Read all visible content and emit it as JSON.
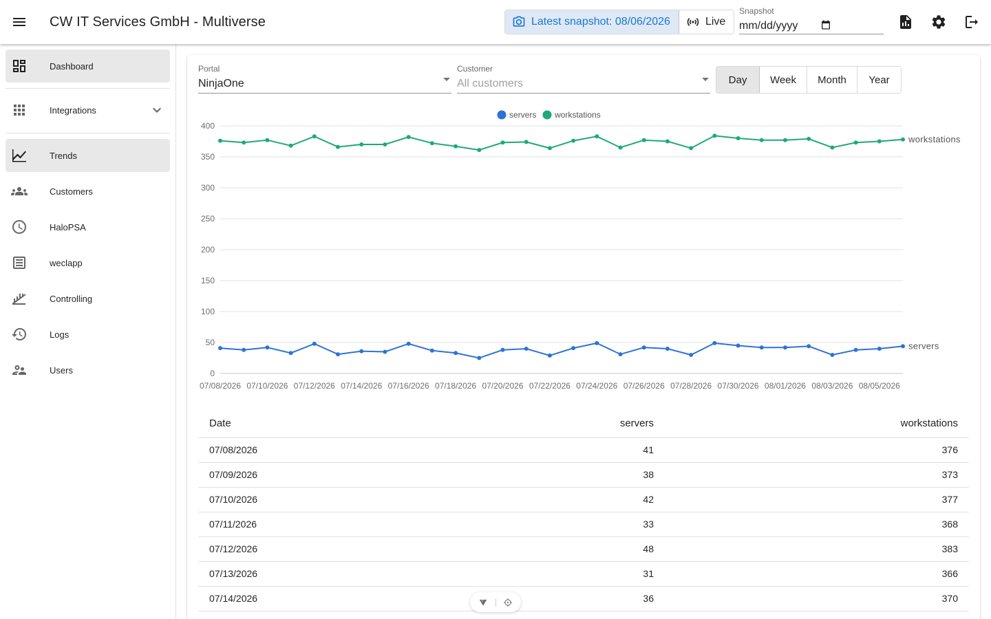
{
  "header": {
    "title": "CW IT Services GmbH - Multiverse",
    "snapshot_button": "Latest snapshot: 08/06/2026",
    "live_button": "Live",
    "snapshot_field_label": "Snapshot",
    "snapshot_field_value": "mm/dd/yyyy"
  },
  "sidebar": {
    "items": [
      {
        "label": "Dashboard",
        "icon": "dashboard-icon",
        "active": true
      },
      {
        "label": "Integrations",
        "icon": "apps-grid-icon",
        "expandable": true
      },
      {
        "label": "Trends",
        "icon": "trend-line-icon",
        "active": true
      },
      {
        "label": "Customers",
        "icon": "groups-icon"
      },
      {
        "label": "HaloPSA",
        "icon": "clock-icon"
      },
      {
        "label": "weclapp",
        "icon": "list-icon"
      },
      {
        "label": "Controlling",
        "icon": "stacked-chart-icon"
      },
      {
        "label": "Logs",
        "icon": "history-icon"
      },
      {
        "label": "Users",
        "icon": "people-icon"
      }
    ]
  },
  "filters": {
    "portal_label": "Portal",
    "portal_value": "NinjaOne",
    "customer_label": "Customer",
    "customer_placeholder": "All customers",
    "ranges": [
      "Day",
      "Week",
      "Month",
      "Year"
    ],
    "selected_range": "Day"
  },
  "chart_data": {
    "type": "line",
    "x": [
      "07/08/2026",
      "07/09/2026",
      "07/10/2026",
      "07/11/2026",
      "07/12/2026",
      "07/13/2026",
      "07/14/2026",
      "07/15/2026",
      "07/16/2026",
      "07/17/2026",
      "07/18/2026",
      "07/19/2026",
      "07/20/2026",
      "07/21/2026",
      "07/22/2026",
      "07/23/2026",
      "07/24/2026",
      "07/25/2026",
      "07/26/2026",
      "07/27/2026",
      "07/28/2026",
      "07/29/2026",
      "07/30/2026",
      "07/31/2026",
      "08/01/2026",
      "08/02/2026",
      "08/03/2026",
      "08/04/2026",
      "08/05/2026",
      "08/06/2026"
    ],
    "x_tick_labels": [
      "07/08/2026",
      "07/10/2026",
      "07/12/2026",
      "07/14/2026",
      "07/16/2026",
      "07/18/2026",
      "07/20/2026",
      "07/22/2026",
      "07/24/2026",
      "07/26/2026",
      "07/28/2026",
      "07/30/2026",
      "08/01/2026",
      "08/03/2026",
      "08/05/2026"
    ],
    "ylim": [
      0,
      400
    ],
    "y_ticks": [
      0,
      50,
      100,
      150,
      200,
      250,
      300,
      350,
      400
    ],
    "grid": true,
    "legend_position": "top-center",
    "series": [
      {
        "name": "servers",
        "color": "#2d73d6",
        "values": [
          41,
          38,
          42,
          33,
          48,
          31,
          36,
          35,
          48,
          37,
          33,
          25,
          38,
          40,
          29,
          41,
          49,
          31,
          42,
          40,
          30,
          49,
          45,
          42,
          42,
          44,
          30,
          38,
          40,
          44
        ]
      },
      {
        "name": "workstations",
        "color": "#1fa97a",
        "values": [
          376,
          373,
          377,
          368,
          383,
          366,
          370,
          370,
          382,
          372,
          367,
          361,
          373,
          374,
          364,
          376,
          383,
          365,
          377,
          375,
          364,
          384,
          380,
          377,
          377,
          379,
          365,
          373,
          375,
          378
        ]
      }
    ]
  },
  "table": {
    "headers": [
      "Date",
      "servers",
      "workstations"
    ],
    "rows": [
      [
        "07/08/2026",
        "41",
        "376"
      ],
      [
        "07/09/2026",
        "38",
        "373"
      ],
      [
        "07/10/2026",
        "42",
        "377"
      ],
      [
        "07/11/2026",
        "33",
        "368"
      ],
      [
        "07/12/2026",
        "48",
        "383"
      ],
      [
        "07/13/2026",
        "31",
        "366"
      ],
      [
        "07/14/2026",
        "36",
        "370"
      ]
    ]
  }
}
